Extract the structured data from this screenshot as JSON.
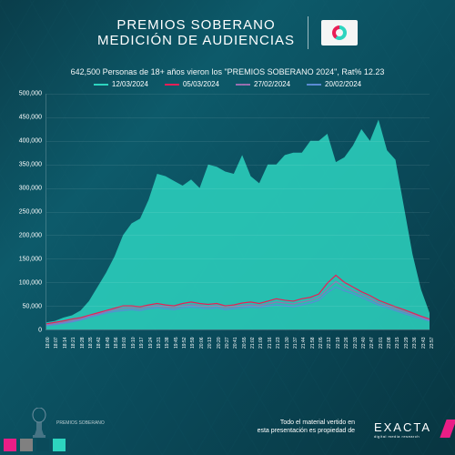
{
  "header": {
    "title_line1": "PREMIOS SOBERANO",
    "title_line2": "MEDICIÓN DE AUDIENCIAS"
  },
  "subtitle": "642,500 Personas de 18+ años vieron los \"PREMIOS SOBERANO 2024\", Rat% 12.23",
  "legend": [
    {
      "label": "12/03/2024",
      "color": "#2dd4bf"
    },
    {
      "label": "05/03/2024",
      "color": "#e91e56"
    },
    {
      "label": "27/02/2024",
      "color": "#9a6fb0"
    },
    {
      "label": "20/02/2024",
      "color": "#5b8bd4"
    }
  ],
  "chart": {
    "type": "area-line",
    "background": "transparent",
    "ylim": [
      0,
      500000
    ],
    "ytick_step": 50000,
    "yticks": [
      "0",
      "50,000",
      "100,000",
      "150,000",
      "200,000",
      "250,000",
      "300,000",
      "350,000",
      "400,000",
      "450,000",
      "500,000"
    ],
    "xticks": [
      "18:00",
      "18:07",
      "18:14",
      "18:21",
      "18:28",
      "18:35",
      "18:42",
      "18:49",
      "18:56",
      "19:03",
      "19:10",
      "19:17",
      "19:24",
      "19:31",
      "19:38",
      "19:45",
      "19:52",
      "19:59",
      "20:06",
      "20:13",
      "20:20",
      "20:27",
      "20:41",
      "20:55",
      "21:02",
      "21:09",
      "21:16",
      "21:23",
      "21:30",
      "21:37",
      "21:44",
      "21:58",
      "22:05",
      "22:12",
      "22:19",
      "22:26",
      "22:33",
      "22:40",
      "22:47",
      "23:01",
      "23:08",
      "23:15",
      "23:29",
      "23:36",
      "23:43",
      "23:57"
    ],
    "grid_color": "rgba(255,255,255,0.08)",
    "tick_fontsize": 7,
    "series": [
      {
        "name": "12/03/2024",
        "kind": "area",
        "color": "#2dd4bf",
        "fill_opacity": 0.85,
        "values": [
          15000,
          18000,
          25000,
          30000,
          40000,
          60000,
          90000,
          120000,
          155000,
          200000,
          225000,
          235000,
          275000,
          330000,
          325000,
          315000,
          305000,
          318000,
          300000,
          350000,
          345000,
          335000,
          330000,
          370000,
          325000,
          310000,
          350000,
          350000,
          370000,
          375000,
          375000,
          400000,
          400000,
          415000,
          355000,
          365000,
          390000,
          425000,
          400000,
          445000,
          380000,
          360000,
          260000,
          160000,
          85000,
          35000
        ]
      },
      {
        "name": "05/03/2024",
        "kind": "line",
        "color": "#e91e56",
        "width": 1.2,
        "values": [
          12000,
          15000,
          18000,
          22000,
          25000,
          30000,
          35000,
          40000,
          45000,
          50000,
          50000,
          48000,
          52000,
          55000,
          52000,
          50000,
          55000,
          58000,
          55000,
          53000,
          55000,
          50000,
          52000,
          56000,
          58000,
          55000,
          60000,
          65000,
          62000,
          60000,
          65000,
          68000,
          75000,
          98000,
          115000,
          100000,
          90000,
          80000,
          72000,
          62000,
          55000,
          48000,
          42000,
          35000,
          28000,
          22000
        ]
      },
      {
        "name": "27/02/2024",
        "kind": "line",
        "color": "#9a6fb0",
        "width": 1.2,
        "values": [
          10000,
          12000,
          15000,
          18000,
          22000,
          28000,
          32000,
          38000,
          42000,
          45000,
          46000,
          44000,
          48000,
          50000,
          48000,
          46000,
          50000,
          52000,
          50000,
          48000,
          50000,
          46000,
          48000,
          50000,
          52000,
          50000,
          54000,
          58000,
          56000,
          54000,
          58000,
          62000,
          68000,
          85000,
          102000,
          90000,
          82000,
          74000,
          66000,
          56000,
          50000,
          44000,
          38000,
          32000,
          26000,
          20000
        ]
      },
      {
        "name": "20/02/2024",
        "kind": "line",
        "color": "#5b8bd4",
        "width": 1.2,
        "values": [
          8000,
          10000,
          13000,
          16000,
          20000,
          25000,
          30000,
          35000,
          38000,
          40000,
          42000,
          40000,
          44000,
          46000,
          44000,
          42000,
          46000,
          48000,
          46000,
          44000,
          46000,
          42000,
          44000,
          46000,
          48000,
          46000,
          50000,
          52000,
          50000,
          48000,
          52000,
          56000,
          62000,
          78000,
          90000,
          82000,
          76000,
          68000,
          60000,
          52000,
          46000,
          40000,
          34000,
          28000,
          23000,
          18000
        ]
      }
    ]
  },
  "footer": {
    "logo_label": "PREMIOS SOBERANO",
    "credit_line1": "Todo el material vertido en",
    "credit_line2": "esta presentación es propiedad de",
    "brand": "EXACTA",
    "brand_sub": "digital media research",
    "accent_colors": [
      "#e91e86",
      "#808080",
      "#0a4a5a",
      "#2dd4bf"
    ]
  }
}
